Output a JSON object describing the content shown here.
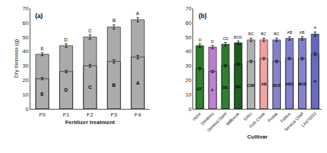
{
  "chart_data": [
    {
      "type": "bar",
      "title": "(a)",
      "categories": [
        "F0",
        "F1",
        "F2",
        "F3",
        "F4"
      ],
      "xlabel": "Fertilizer treatment",
      "ylabel": "Dry biomass (g)",
      "ylim": [
        0,
        70
      ],
      "yticks": [
        0,
        10,
        20,
        30,
        40,
        50,
        60,
        70
      ],
      "grid": false,
      "series": [
        {
          "color": "#aaaaaa",
          "values": [
            38,
            44,
            50,
            57,
            62
          ],
          "errors": [
            1.0,
            1.2,
            1.5,
            1.5,
            1.5
          ],
          "labels": [
            "E",
            "D",
            "C",
            "B",
            "A"
          ]
        },
        {
          "color": "#bbbbbb",
          "values": [
            21,
            26,
            30,
            33,
            36
          ],
          "errors": [
            0.8,
            0.8,
            1.0,
            1.2,
            1.2
          ],
          "labels": [
            "E",
            "D",
            "C",
            "B",
            "A"
          ]
        }
      ]
    },
    {
      "type": "bar",
      "title": "(b)",
      "categories": [
        "Victor",
        "Dimitrios",
        "Geneva Giant",
        "Millbrook",
        "SX61",
        "Fish Creek",
        "Preble",
        "Fabius",
        "Seneca Chief",
        "LA970253"
      ],
      "xlabel": "Cultivar",
      "ylim": [
        0,
        70
      ],
      "yticks": [
        0,
        10,
        20,
        30,
        40,
        50,
        60,
        70
      ],
      "grid": false,
      "series": [
        {
          "colors": [
            "#2d7a2d",
            "#c07bd0",
            "#2d7a2d",
            "#1a5c1a",
            "#b0b0b0",
            "#f0a0a0",
            "#8080cc",
            "#8080cc",
            "#8080cc",
            "#6666bb"
          ],
          "values": [
            44,
            43,
            45,
            46,
            48,
            48,
            48,
            49,
            49,
            52
          ],
          "errors": [
            1.2,
            1.2,
            1.2,
            1.2,
            1.2,
            1.2,
            1.2,
            1.2,
            1.2,
            1.5
          ],
          "labels": [
            "D",
            "D",
            "CD",
            "BCD",
            "BC",
            "BC",
            "BC",
            "AB",
            "AB",
            "A"
          ]
        },
        {
          "colors": [
            "#55aa55",
            "#d8a0e8",
            "#55aa55",
            "#3d8c3d",
            "#c8c8c8",
            "#f8c8c8",
            "#a0a0dd",
            "#a0a0dd",
            "#a0a0dd",
            "#8888cc"
          ],
          "values": [
            28,
            26,
            30,
            31,
            33,
            35,
            33,
            35,
            35,
            38
          ],
          "errors": [
            0.8,
            0.8,
            0.8,
            0.8,
            0.8,
            0.8,
            0.8,
            0.8,
            0.8,
            1.0
          ],
          "labels": [
            "EF",
            "F",
            "DE",
            "DE",
            "CDE",
            "AB",
            "BCD",
            "ABC",
            "BCD",
            "A"
          ]
        }
      ]
    }
  ]
}
